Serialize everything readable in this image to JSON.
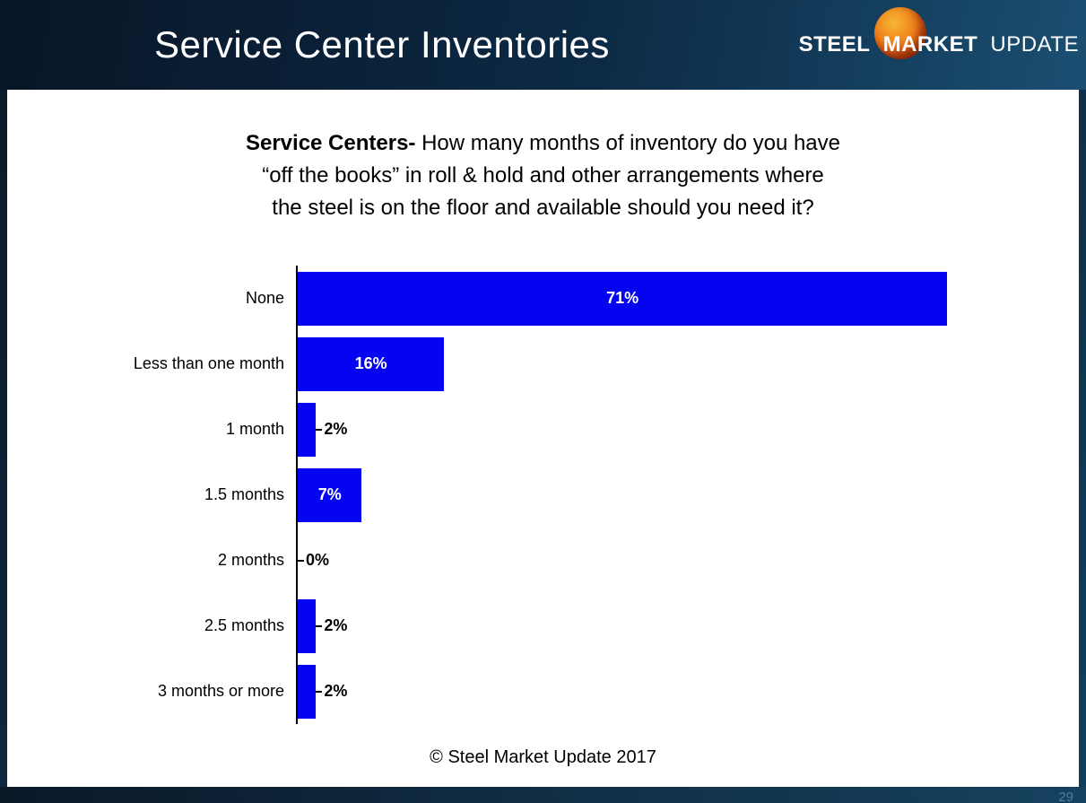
{
  "header": {
    "title": "Service Center Inventories",
    "logo": {
      "steel": "STEEL",
      "market": "MARKET",
      "update": "UPDATE"
    }
  },
  "copyright": "© Steel Market Update 2017",
  "footer": {
    "page_number": "29"
  },
  "chart_data": {
    "type": "bar",
    "orientation": "horizontal",
    "title": {
      "bold": "Service Centers-",
      "line1_rest": " How many months of inventory do you have",
      "line2": "“off the books” in roll & hold and other arrangements where",
      "line3": "the steel is on the floor and available should you need it?"
    },
    "categories": [
      "None",
      "Less than one month",
      "1 month",
      "1.5 months",
      "2 months",
      "2.5 months",
      "3 months or more"
    ],
    "values": [
      71,
      16,
      2,
      7,
      0,
      2,
      2
    ],
    "value_labels": [
      "71%",
      "16%",
      "2%",
      "7%",
      "0%",
      "2%",
      "2%"
    ],
    "bar_color": "#0404f0",
    "inside_label_threshold": 7,
    "xlim": [
      0,
      71
    ],
    "grid": false,
    "legend": false
  }
}
